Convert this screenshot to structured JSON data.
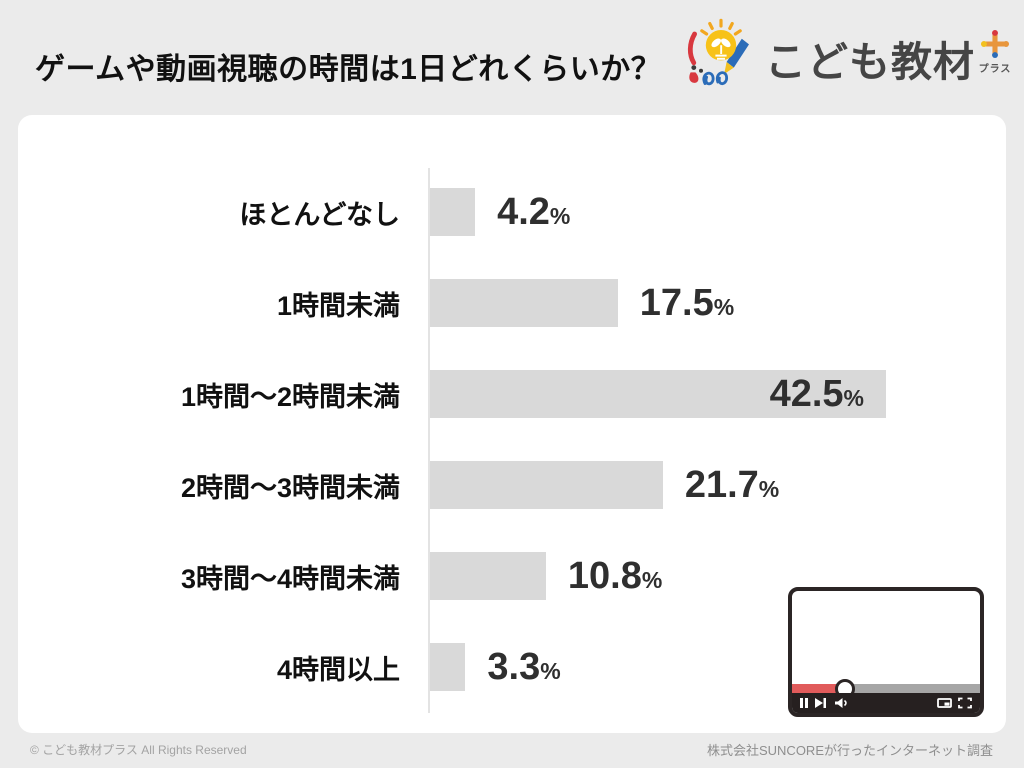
{
  "page": {
    "title": "ゲームや動画視聴の時間は1日どれくらいか？",
    "background_color": "#ebebeb",
    "card_color": "#ffffff"
  },
  "logo": {
    "brand": "こども教材",
    "suffix": "プラス",
    "colors": {
      "text": "#454545",
      "yellow": "#f7c219",
      "orange": "#e8963c",
      "red": "#d8383f",
      "blue": "#2b6cb8"
    }
  },
  "chart_data": {
    "type": "bar",
    "orientation": "horizontal",
    "title": "ゲームや動画視聴の時間は1日どれくらいか？",
    "categories": [
      "ほとんどなし",
      "1時間未満",
      "1時間〜2時間未満",
      "2時間〜3時間未満",
      "3時間〜4時間未満",
      "4時間以上"
    ],
    "values": [
      4.2,
      17.5,
      42.5,
      21.7,
      10.8,
      3.3
    ],
    "unit": "%",
    "xlim": [
      0,
      45
    ],
    "grid": false,
    "legend": false,
    "bar_color": "#d9d9d9",
    "value_color": "#2f2f2f",
    "value_label_inside": [
      false,
      false,
      true,
      false,
      false,
      false
    ]
  },
  "video_player": {
    "progress_percent": 28,
    "progress_color": "#e15b5b",
    "track_color": "#a6a6a6",
    "chrome_color": "#262020"
  },
  "footer": {
    "copyright": "© こども教材プラス All Rights Reserved",
    "source": "株式会社SUNCOREが行ったインターネット調査"
  }
}
